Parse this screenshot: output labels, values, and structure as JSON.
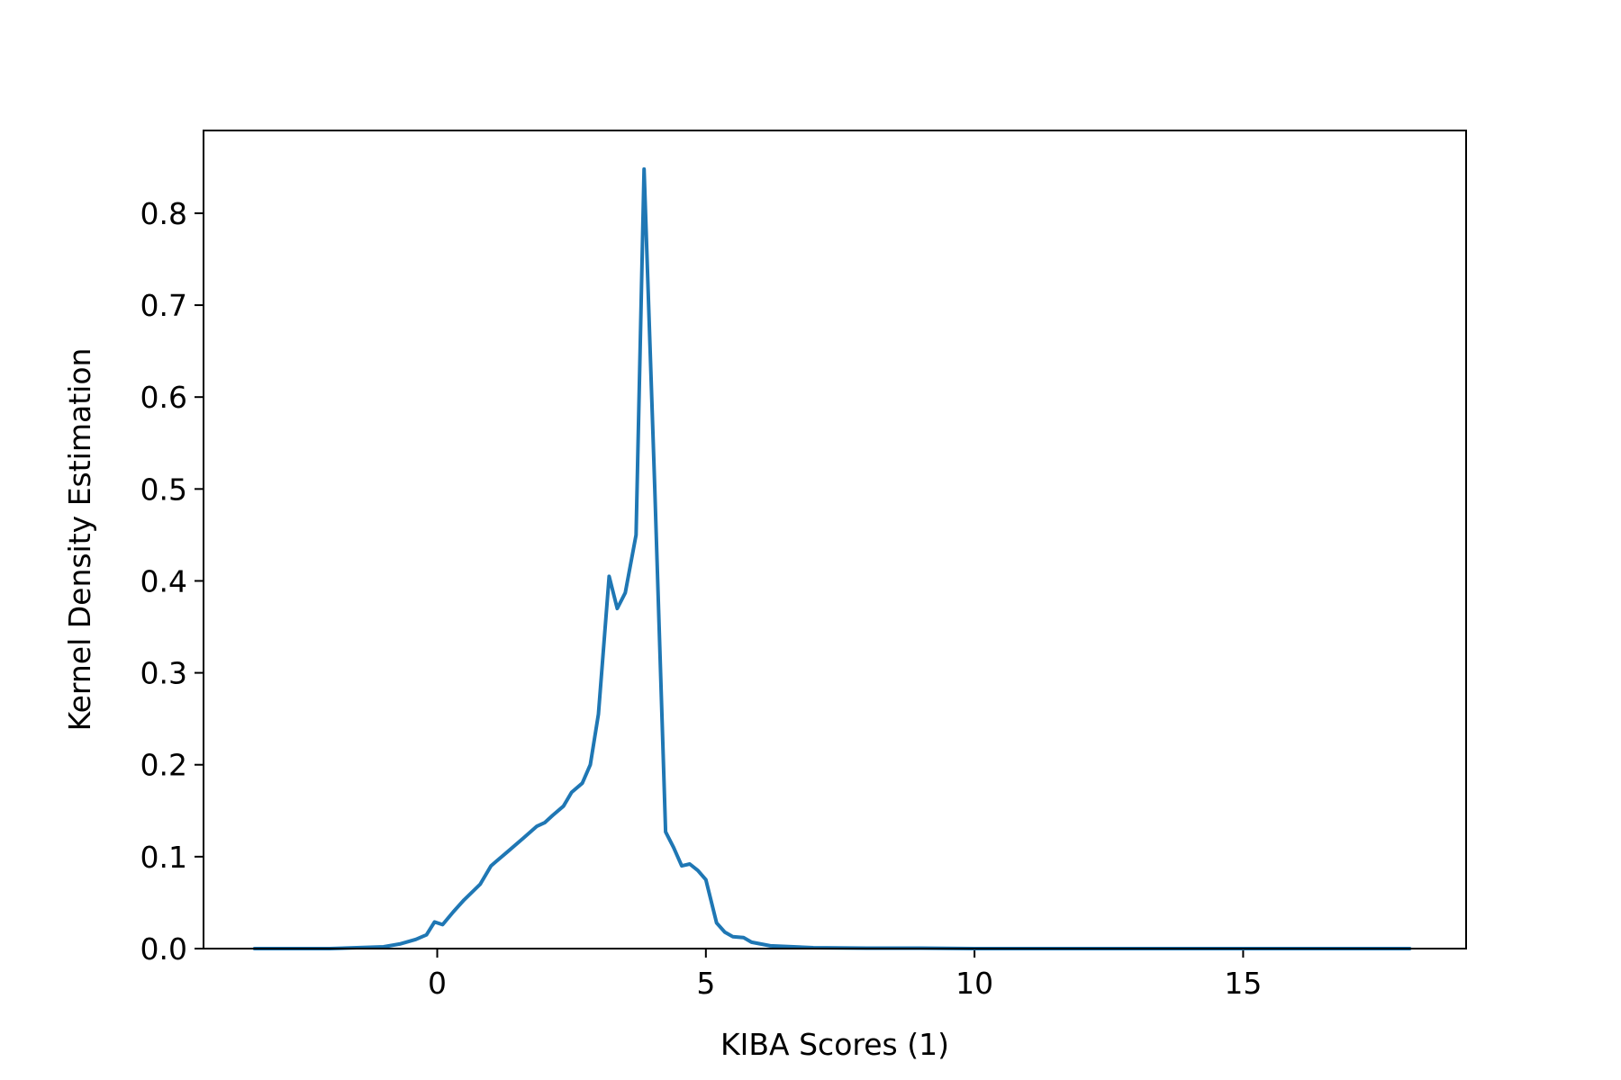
{
  "chart_data": {
    "type": "line",
    "xlabel": "KIBA Scores (1)",
    "ylabel": "Kernel Density Estimation",
    "xlim": [
      -4.35,
      19.15
    ],
    "ylim": [
      0,
      0.89
    ],
    "xticks": [
      0,
      5,
      10,
      15
    ],
    "yticks": [
      0.0,
      0.1,
      0.2,
      0.3,
      0.4,
      0.5,
      0.6,
      0.7,
      0.8
    ],
    "ytick_labels": [
      "0.0",
      "0.1",
      "0.2",
      "0.3",
      "0.4",
      "0.5",
      "0.6",
      "0.7",
      "0.8"
    ],
    "grid": false,
    "line_color": "#1f77b4",
    "series": [
      {
        "x": [
          -3.4,
          -2.0,
          -1.5,
          -1.0,
          -0.7,
          -0.4,
          -0.2,
          -0.05,
          0.1,
          0.3,
          0.5,
          0.8,
          1.0,
          1.1,
          1.3,
          1.6,
          1.85,
          2.0,
          2.15,
          2.35,
          2.5,
          2.7,
          2.85,
          3.0,
          3.2,
          3.35,
          3.5,
          3.7,
          3.85,
          4.05,
          4.25,
          4.4,
          4.55,
          4.7,
          4.85,
          5.0,
          5.2,
          5.35,
          5.5,
          5.7,
          5.85,
          6.2,
          7.0,
          8.0,
          9.0,
          10.0,
          12.0,
          14.0,
          16.0,
          18.1
        ],
        "y": [
          0.0,
          0.0,
          0.001,
          0.002,
          0.005,
          0.01,
          0.015,
          0.029,
          0.026,
          0.04,
          0.053,
          0.07,
          0.09,
          0.095,
          0.105,
          0.12,
          0.133,
          0.137,
          0.145,
          0.155,
          0.17,
          0.18,
          0.2,
          0.255,
          0.405,
          0.37,
          0.387,
          0.45,
          0.848,
          0.5,
          0.127,
          0.11,
          0.09,
          0.092,
          0.085,
          0.075,
          0.028,
          0.018,
          0.013,
          0.012,
          0.007,
          0.003,
          0.001,
          0.0005,
          0.0005,
          0.0,
          0.0,
          0.0,
          0.0,
          0.0
        ]
      }
    ]
  }
}
